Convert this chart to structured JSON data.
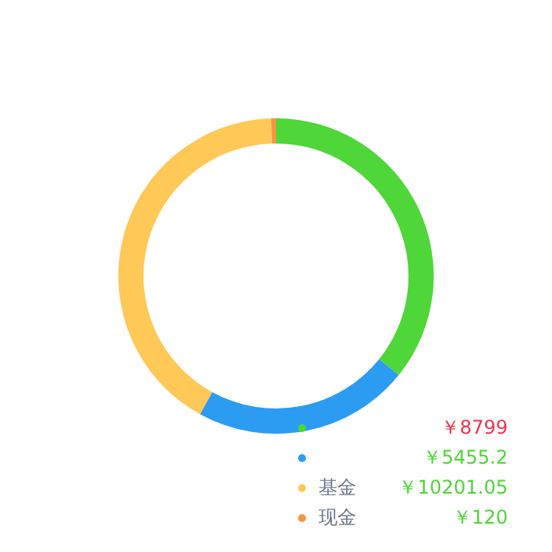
{
  "chart_data": {
    "type": "donut",
    "categories": [
      null,
      null,
      "基金",
      "现金"
    ],
    "values": [
      8799,
      5455.2,
      10201.05,
      120
    ],
    "colors": [
      "#4fd638",
      "#2b9cf2",
      "#ffc857",
      "#f7953f"
    ],
    "value_labels": [
      "￥8799",
      "￥5455.2",
      "￥10201.05",
      "￥120"
    ],
    "legend": "bottom right"
  }
}
